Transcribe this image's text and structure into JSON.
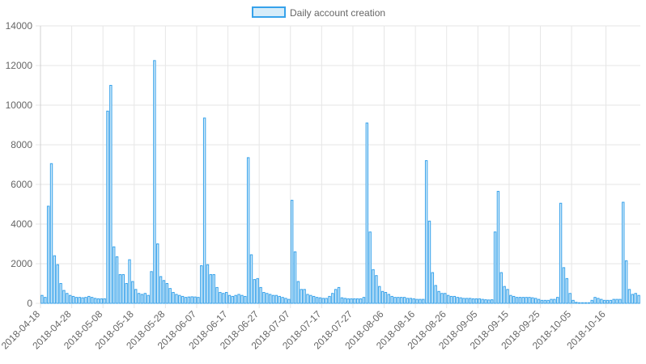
{
  "chart_data": {
    "type": "bar",
    "title": "",
    "xlabel": "",
    "ylabel": "",
    "legend": {
      "position": "top",
      "label": "Daily account creation"
    },
    "colors": {
      "bar_fill": "#d6ecf9",
      "bar_stroke": "#36a2eb",
      "grid": "#e6e6e6",
      "tick_text": "#666666"
    },
    "grid": true,
    "ylim": [
      0,
      14000
    ],
    "y_ticks": [
      0,
      2000,
      4000,
      6000,
      8000,
      10000,
      12000,
      14000
    ],
    "x_tick_labels": [
      "2018-04-18",
      "2018-04-28",
      "2018-05-08",
      "2018-05-18",
      "2018-05-28",
      "2018-06-07",
      "2018-06-17",
      "2018-06-27",
      "2018-07-07",
      "2018-07-17",
      "2018-07-27",
      "2018-08-06",
      "2018-08-16",
      "2018-08-26",
      "2018-09-05",
      "2018-09-15",
      "2018-09-25",
      "2018-10-05",
      "2018-10-16"
    ],
    "start_date": "2018-04-18",
    "values": [
      400,
      300,
      4900,
      7050,
      2400,
      1950,
      1000,
      650,
      500,
      400,
      350,
      300,
      300,
      280,
      300,
      350,
      300,
      250,
      230,
      230,
      230,
      9700,
      11000,
      2850,
      2350,
      1450,
      1450,
      1000,
      2200,
      1100,
      700,
      500,
      450,
      500,
      400,
      1600,
      12250,
      3000,
      1350,
      1150,
      1000,
      750,
      550,
      450,
      400,
      350,
      300,
      320,
      330,
      320,
      300,
      1900,
      9350,
      1950,
      1450,
      1450,
      800,
      550,
      500,
      550,
      400,
      350,
      400,
      450,
      400,
      350,
      7350,
      2450,
      1200,
      1250,
      800,
      550,
      500,
      450,
      400,
      400,
      350,
      300,
      250,
      200,
      5200,
      2600,
      1100,
      700,
      700,
      450,
      400,
      350,
      300,
      280,
      250,
      250,
      350,
      500,
      700,
      800,
      280,
      250,
      230,
      230,
      230,
      230,
      230,
      300,
      9100,
      3600,
      1700,
      1400,
      850,
      600,
      550,
      450,
      350,
      300,
      300,
      300,
      300,
      250,
      250,
      230,
      200,
      200,
      200,
      7200,
      4150,
      1550,
      900,
      600,
      500,
      500,
      400,
      350,
      350,
      300,
      280,
      250,
      250,
      250,
      230,
      230,
      230,
      200,
      180,
      170,
      180,
      3600,
      5650,
      1550,
      850,
      700,
      400,
      350,
      300,
      300,
      300,
      300,
      300,
      280,
      250,
      200,
      150,
      150,
      150,
      200,
      200,
      300,
      5050,
      1800,
      1250,
      500,
      150,
      50,
      30,
      30,
      30,
      30,
      150,
      300,
      250,
      200,
      150,
      150,
      150,
      200,
      200,
      200,
      5100,
      2150,
      700,
      450,
      500,
      400
    ]
  }
}
